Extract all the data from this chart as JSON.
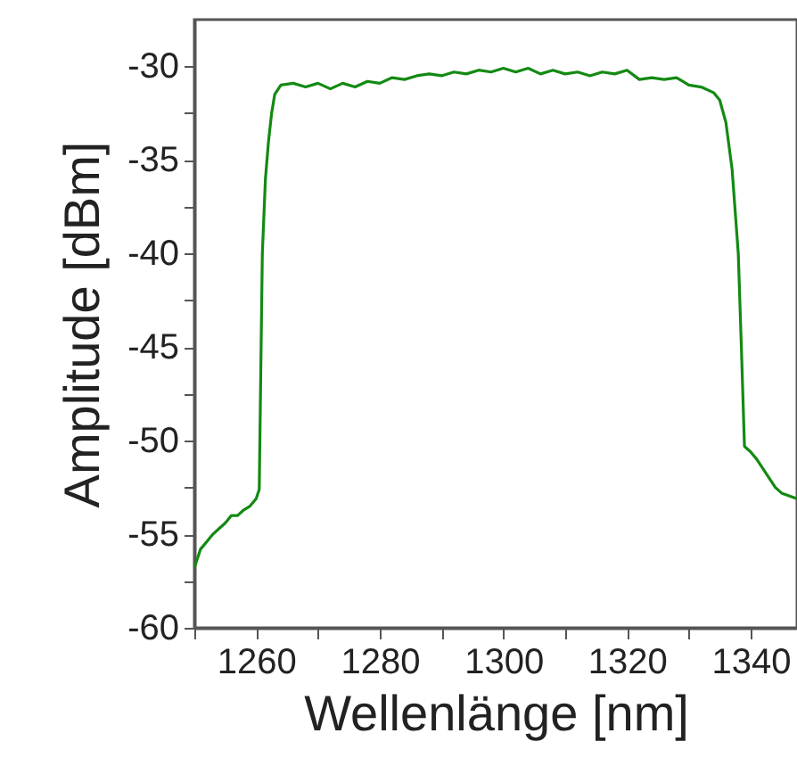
{
  "chart_data": {
    "type": "line",
    "xlabel": "Wellenlänge [nm]",
    "ylabel": "Amplitude [dBm]",
    "xlim": [
      1250,
      1347.5
    ],
    "ylim": [
      -60,
      -27.5
    ],
    "xticks": [
      {
        "value": 1250,
        "label": null
      },
      1260,
      {
        "value": 1270,
        "label": null
      },
      1280,
      {
        "value": 1290,
        "label": null
      },
      1300,
      {
        "value": 1310,
        "label": null
      },
      1320,
      {
        "value": 1330,
        "label": null
      },
      1340
    ],
    "yticks": [
      -60,
      {
        "value": -57.5,
        "label": null
      },
      -55,
      {
        "value": -52.5,
        "label": null
      },
      -50,
      {
        "value": -47.5,
        "label": null
      },
      -45,
      {
        "value": -42.5,
        "label": null
      },
      -40,
      {
        "value": -37.5,
        "label": null
      },
      -35,
      {
        "value": -32.5,
        "label": null
      },
      -30
    ],
    "grid": false,
    "line_style": "solid",
    "marker": "none",
    "series": [
      {
        "color": "#138a13",
        "x": [
          1250,
          1251,
          1252,
          1253,
          1254,
          1255,
          1256,
          1257,
          1258,
          1259,
          1260,
          1260.5,
          1260.8,
          1261,
          1261.5,
          1262,
          1262.5,
          1263,
          1264,
          1266,
          1268,
          1270,
          1272,
          1274,
          1276,
          1278,
          1280,
          1282,
          1284,
          1286,
          1288,
          1290,
          1292,
          1294,
          1296,
          1298,
          1300,
          1302,
          1304,
          1306,
          1308,
          1310,
          1312,
          1314,
          1316,
          1318,
          1320,
          1322,
          1324,
          1326,
          1328,
          1330,
          1332,
          1334,
          1335,
          1336,
          1337,
          1338,
          1338.5,
          1339,
          1340,
          1341,
          1342,
          1343,
          1344,
          1345,
          1347.5
        ],
        "values": [
          -56.8,
          -55.8,
          -55.4,
          -55.0,
          -54.7,
          -54.4,
          -54.0,
          -54.0,
          -53.7,
          -53.5,
          -53.1,
          -52.6,
          -45,
          -40,
          -36,
          -34,
          -32.5,
          -31.5,
          -31.0,
          -30.9,
          -31.1,
          -30.9,
          -31.2,
          -30.9,
          -31.1,
          -30.8,
          -30.9,
          -30.6,
          -30.7,
          -30.5,
          -30.4,
          -30.5,
          -30.3,
          -30.4,
          -30.2,
          -30.3,
          -30.1,
          -30.3,
          -30.1,
          -30.4,
          -30.2,
          -30.4,
          -30.3,
          -30.5,
          -30.3,
          -30.4,
          -30.2,
          -30.7,
          -30.6,
          -30.7,
          -30.6,
          -31.0,
          -31.1,
          -31.4,
          -31.8,
          -33,
          -35.5,
          -40,
          -45,
          -50.3,
          -50.6,
          -51.0,
          -51.5,
          -52.0,
          -52.5,
          -52.8,
          -53.1
        ]
      }
    ]
  }
}
